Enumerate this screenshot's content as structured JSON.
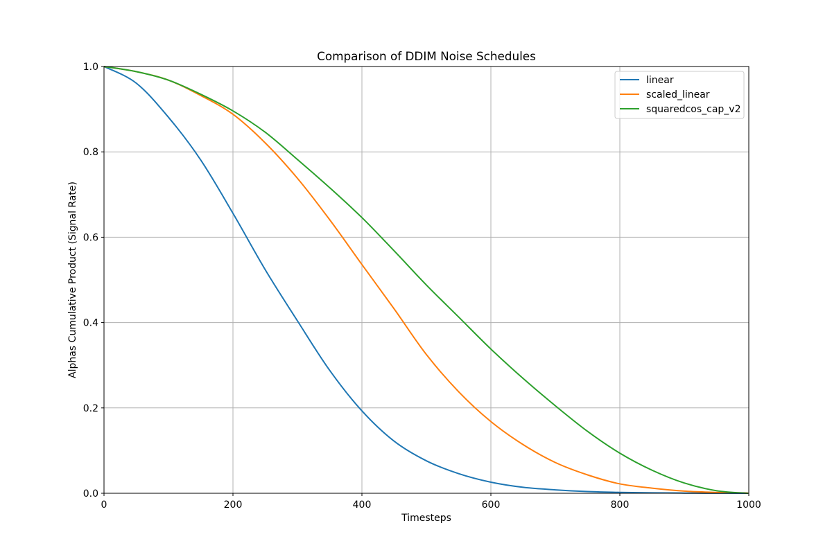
{
  "chart_data": {
    "type": "line",
    "title": "Comparison of DDIM Noise Schedules",
    "xlabel": "Timesteps",
    "ylabel": "Alphas Cumulative Product (Signal Rate)",
    "xlim": [
      0,
      1000
    ],
    "ylim": [
      0.0,
      1.0
    ],
    "xticks": [
      0,
      200,
      400,
      600,
      800,
      1000
    ],
    "xtick_labels": [
      "0",
      "200",
      "400",
      "600",
      "800",
      "1000"
    ],
    "yticks": [
      0.0,
      0.2,
      0.4,
      0.6,
      0.8,
      1.0
    ],
    "ytick_labels": [
      "0.0",
      "0.2",
      "0.4",
      "0.6",
      "0.8",
      "1.0"
    ],
    "grid": true,
    "legend_position": "top-right",
    "x": [
      0,
      50,
      100,
      150,
      200,
      250,
      300,
      350,
      400,
      450,
      500,
      550,
      600,
      650,
      700,
      750,
      800,
      850,
      900,
      950,
      999
    ],
    "series": [
      {
        "name": "linear",
        "color": "#1f77b4",
        "values": [
          1.0,
          0.961,
          0.881,
          0.781,
          0.656,
          0.524,
          0.404,
          0.288,
          0.193,
          0.122,
          0.076,
          0.046,
          0.026,
          0.014,
          0.008,
          0.004,
          0.002,
          0.001,
          0.0005,
          0.0002,
          0.0001
        ]
      },
      {
        "name": "scaled_linear",
        "color": "#ff7f0e",
        "values": [
          1.0,
          0.988,
          0.968,
          0.932,
          0.888,
          0.821,
          0.738,
          0.641,
          0.536,
          0.432,
          0.325,
          0.238,
          0.168,
          0.114,
          0.072,
          0.043,
          0.022,
          0.012,
          0.005,
          0.002,
          0.0005
        ]
      },
      {
        "name": "squaredcos_cap_v2",
        "color": "#2ca02c",
        "values": [
          1.0,
          0.988,
          0.968,
          0.935,
          0.896,
          0.846,
          0.782,
          0.716,
          0.646,
          0.568,
          0.488,
          0.413,
          0.338,
          0.269,
          0.205,
          0.145,
          0.094,
          0.054,
          0.024,
          0.006,
          0.0
        ]
      }
    ]
  }
}
